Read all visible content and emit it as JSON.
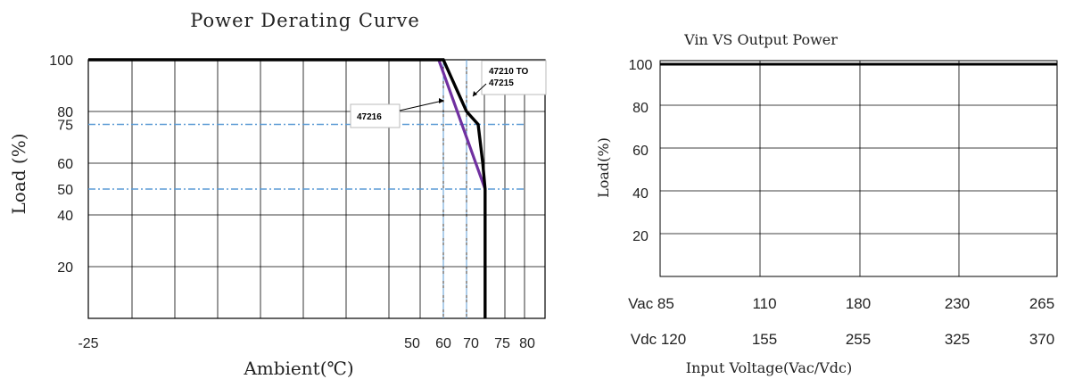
{
  "chart_data": [
    {
      "type": "line",
      "title": "Power Derating Curve",
      "xlabel": "Ambient(℃)",
      "ylabel": "Load (%)",
      "x_tick_labels": [
        "-25",
        "50",
        "60",
        "70",
        "75",
        "80"
      ],
      "y_tick_labels": [
        "100",
        "80",
        "75",
        "60",
        "50",
        "40",
        "20"
      ],
      "grid": true,
      "series": [
        {
          "name": "47210 TO 47215",
          "color": "#000000",
          "points": [
            [
              -25,
              100
            ],
            [
              60,
              100
            ],
            [
              70,
              80
            ],
            [
              75,
              75
            ],
            [
              77,
              60
            ],
            [
              78,
              50
            ],
            [
              78,
              0
            ]
          ]
        },
        {
          "name": "47216",
          "color": "#7030A0",
          "points": [
            [
              58,
              100
            ],
            [
              78,
              50
            ]
          ]
        }
      ],
      "reference_lines": {
        "horizontal": [
          75,
          50
        ],
        "vertical": [
          60,
          70
        ],
        "color": "#5B9BD5"
      }
    },
    {
      "type": "line",
      "title": "Vin VS Output Power",
      "xlabel": "Input Voltage(Vac/Vdc)",
      "ylabel": "Load(%)",
      "y_tick_labels": [
        "100",
        "80",
        "60",
        "40",
        "20"
      ],
      "x_tick_labels_vac": [
        "Vac 85",
        "110",
        "180",
        "230",
        "265"
      ],
      "x_tick_labels_vdc": [
        "Vdc 120",
        "155",
        "255",
        "325",
        "370"
      ],
      "grid": true,
      "series": [
        {
          "color": "#000000",
          "points": [
            [
              85,
              100
            ],
            [
              265,
              100
            ]
          ]
        }
      ]
    }
  ]
}
